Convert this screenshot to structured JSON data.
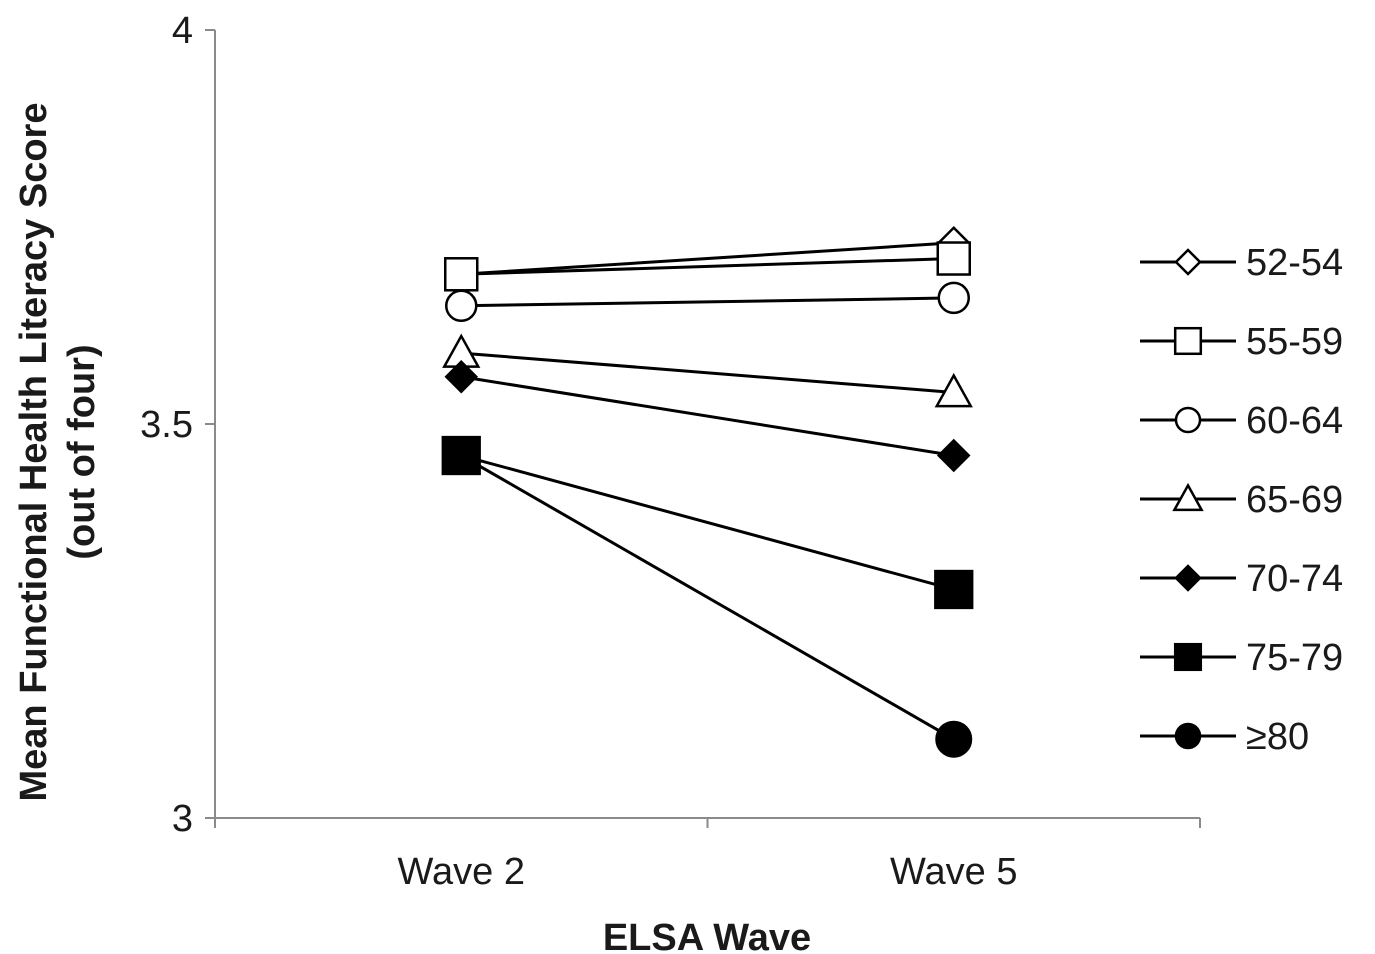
{
  "chart_data": {
    "type": "line",
    "title": "",
    "xlabel": "ELSA Wave",
    "ylabel_line1": "Mean Functional Health Literacy Score",
    "ylabel_line2": "(out of four)",
    "categories": [
      "Wave 2",
      "Wave 5"
    ],
    "ylim": [
      3,
      4
    ],
    "yticks": [
      {
        "value": 3,
        "label": "3"
      },
      {
        "value": 3.5,
        "label": "3.5"
      },
      {
        "value": 4,
        "label": "4"
      }
    ],
    "grid": false,
    "legend_position": "right",
    "series": [
      {
        "name": "52-54",
        "marker": "diamond-open",
        "values": [
          3.69,
          3.73
        ]
      },
      {
        "name": "55-59",
        "marker": "square-open",
        "values": [
          3.69,
          3.71
        ]
      },
      {
        "name": "60-64",
        "marker": "circle-open",
        "values": [
          3.65,
          3.66
        ]
      },
      {
        "name": "65-69",
        "marker": "triangle-open",
        "values": [
          3.59,
          3.54
        ]
      },
      {
        "name": "70-74",
        "marker": "diamond-filled",
        "values": [
          3.56,
          3.46
        ]
      },
      {
        "name": "75-79",
        "marker": "square-filled",
        "values": [
          3.46,
          3.29
        ]
      },
      {
        "name": "≥80",
        "marker": "circle-filled",
        "values": [
          null,
          3.1
        ]
      }
    ],
    "series_color": "#000000"
  }
}
